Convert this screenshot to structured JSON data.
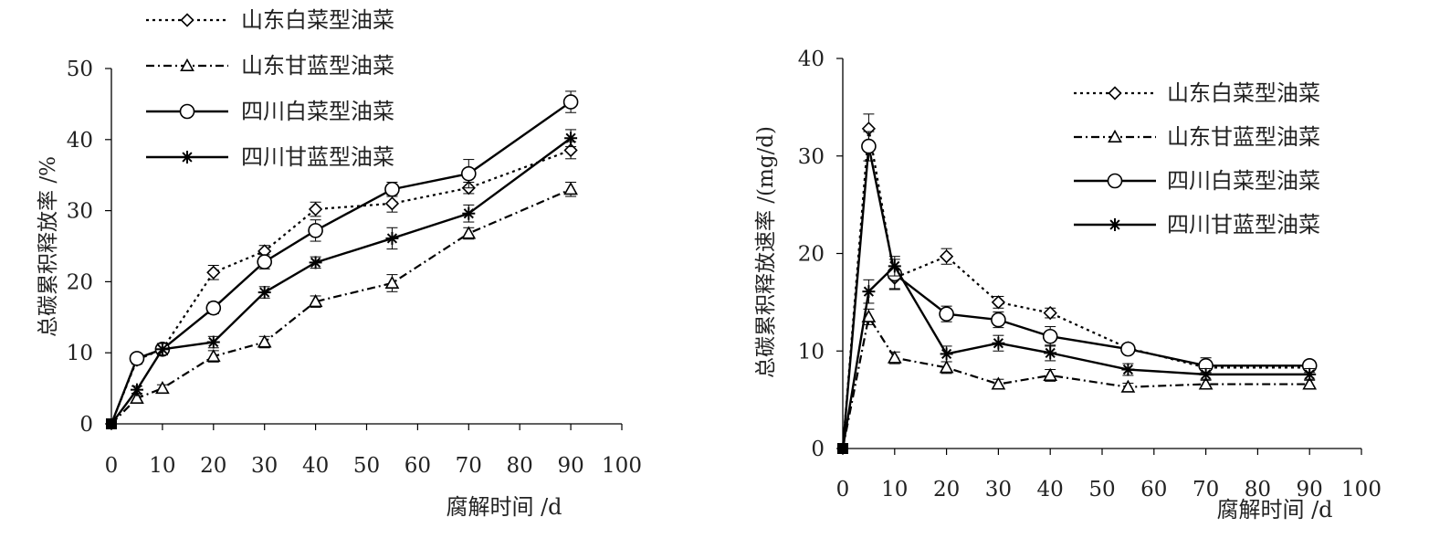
{
  "chart_data": [
    {
      "type": "line",
      "x_values": [
        0,
        5,
        10,
        20,
        30,
        40,
        55,
        70,
        90
      ],
      "xlabel": "腐解时间 /d",
      "ylabel": "总碳累积释放率 /%",
      "xlim": [
        0,
        100
      ],
      "ylim": [
        0,
        50
      ],
      "x_ticks": [
        "0",
        "10",
        "20",
        "30",
        "40",
        "50",
        "60",
        "70",
        "80",
        "90",
        "100"
      ],
      "y_ticks": [
        "0",
        "10",
        "20",
        "30",
        "40",
        "50"
      ],
      "legend_position": "top-left",
      "grid": false,
      "series": [
        {
          "name": "山东白菜型油菜",
          "line": "dotted",
          "marker": "diamond",
          "values": [
            0,
            9,
            10.5,
            21.3,
            24.3,
            30.2,
            31,
            33.2,
            38.5
          ],
          "error": [
            0,
            0.6,
            0.6,
            1,
            0.8,
            1,
            1.2,
            0.8,
            1.2
          ]
        },
        {
          "name": "山东甘蓝型油菜",
          "line": "dash-dot",
          "marker": "triangle",
          "values": [
            0,
            3.6,
            5,
            9.5,
            11.5,
            17.2,
            19.8,
            26.8,
            33
          ],
          "error": [
            0,
            0.5,
            0.5,
            0.8,
            0.8,
            0.8,
            1.2,
            0.8,
            1
          ]
        },
        {
          "name": "四川白菜型油菜",
          "line": "solid",
          "marker": "circle",
          "values": [
            0,
            9.2,
            10.5,
            16.3,
            22.8,
            27.2,
            33,
            35.2,
            45.3
          ],
          "error": [
            0,
            0.6,
            0.8,
            0.8,
            1,
            1.5,
            1,
            2,
            1.5
          ]
        },
        {
          "name": "四川甘蓝型油菜",
          "line": "solid",
          "marker": "asterisk",
          "values": [
            0,
            4.8,
            10.5,
            11.5,
            18.5,
            22.7,
            26.1,
            29.6,
            40.2
          ],
          "error": [
            0,
            0.5,
            0.8,
            0.8,
            0.8,
            0.8,
            1.5,
            1.2,
            1.2
          ]
        }
      ]
    },
    {
      "type": "line",
      "x_values": [
        0,
        5,
        10,
        20,
        30,
        40,
        55,
        70,
        90
      ],
      "xlabel": "腐解时间 /d",
      "ylabel": "总碳累积释放速率 /(mg/d)",
      "xlim": [
        0,
        100
      ],
      "ylim": [
        0,
        40
      ],
      "x_ticks": [
        "0",
        "10",
        "20",
        "30",
        "40",
        "50",
        "60",
        "70",
        "80",
        "90",
        "100"
      ],
      "y_ticks": [
        "0",
        "10",
        "20",
        "30",
        "40"
      ],
      "legend_position": "top-right",
      "grid": false,
      "series": [
        {
          "name": "山东白菜型油菜",
          "line": "dotted",
          "marker": "diamond",
          "values": [
            0,
            32.8,
            17.5,
            19.7,
            15,
            13.9,
            10.3,
            8.3,
            8.3
          ],
          "error": [
            0,
            1.5,
            1.2,
            0.8,
            0.6,
            0.5,
            0.4,
            0.5,
            0.5
          ]
        },
        {
          "name": "山东甘蓝型油菜",
          "line": "dash-dot",
          "marker": "triangle",
          "values": [
            0,
            13.5,
            9.3,
            8.3,
            6.6,
            7.5,
            6.3,
            6.6,
            6.6
          ],
          "error": [
            0,
            0.8,
            0.6,
            0.6,
            0.5,
            0.6,
            0.4,
            0.5,
            0.5
          ]
        },
        {
          "name": "四川白菜型油菜",
          "line": "solid",
          "marker": "circle",
          "values": [
            0,
            31,
            17.9,
            13.8,
            13.2,
            11.5,
            10.2,
            8.5,
            8.5
          ],
          "error": [
            0,
            1.5,
            1.5,
            0.8,
            0.8,
            1,
            0.5,
            0.8,
            0.5
          ]
        },
        {
          "name": "四川甘蓝型油菜",
          "line": "solid",
          "marker": "asterisk",
          "values": [
            0,
            16.1,
            18.7,
            9.7,
            10.8,
            9.8,
            8.1,
            7.6,
            7.6
          ],
          "error": [
            0,
            1.2,
            1,
            0.8,
            0.8,
            0.8,
            0.6,
            0.6,
            0.6
          ]
        }
      ]
    }
  ]
}
